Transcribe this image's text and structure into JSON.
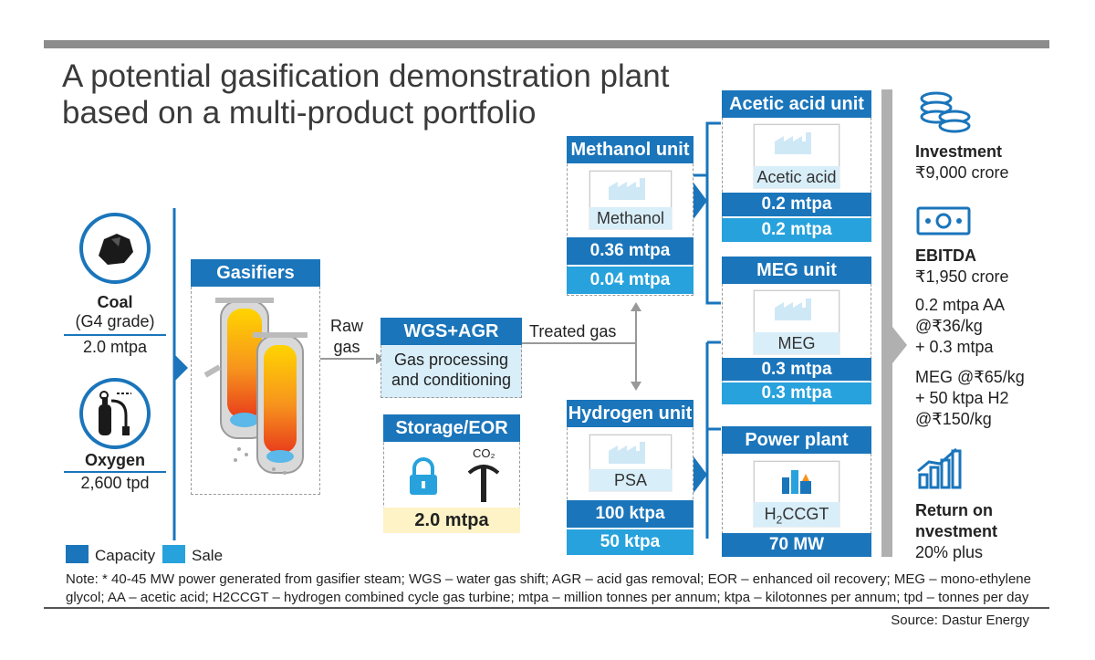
{
  "title_line1": "A potential gasification demonstration plant",
  "title_line2": "based on a multi-product portfolio",
  "inputs": {
    "coal_label": "Coal",
    "coal_grade": "(G4 grade)",
    "coal_value": "2.0 mtpa",
    "oxygen_label": "Oxygen",
    "oxygen_value": "2,600 tpd"
  },
  "gasifiers": {
    "title": "Gasifiers"
  },
  "raw_gas": {
    "line1": "Raw",
    "line2": "gas"
  },
  "wgs": {
    "title": "WGS+AGR",
    "line1": "Gas processing",
    "line2": "and conditioning"
  },
  "treated_gas": "Treated gas",
  "storage": {
    "title": "Storage/EOR",
    "co2": "CO₂",
    "value": "2.0 mtpa"
  },
  "methanol": {
    "title": "Methanol unit",
    "product": "Methanol",
    "capacity": "0.36 mtpa",
    "sale": "0.04 mtpa"
  },
  "hydrogen": {
    "title": "Hydrogen unit",
    "product": "PSA",
    "capacity": "100 ktpa",
    "sale": "50 ktpa"
  },
  "acetic": {
    "title": "Acetic acid unit",
    "product": "Acetic acid",
    "capacity": "0.2 mtpa",
    "sale": "0.2 mtpa"
  },
  "meg": {
    "title": "MEG unit",
    "product": "MEG",
    "capacity": "0.3 mtpa",
    "sale": "0.3 mtpa"
  },
  "power": {
    "title": "Power plant",
    "product_h": "H",
    "product_sub": "2",
    "product_rest": "CCGT",
    "capacity": "70 MW"
  },
  "finance": {
    "investment_label": "Investment",
    "investment_value": "₹9,000 crore",
    "ebitda_label": "EBITDA",
    "ebitda_value": "₹1,950 crore",
    "ebitda_d1": "0.2 mtpa AA",
    "ebitda_d2": "@₹36/kg",
    "ebitda_d3": "+ 0.3 mtpa",
    "ebitda_d4": "MEG @₹65/kg",
    "ebitda_d5": "+ 50 ktpa H2",
    "ebitda_d6": "@₹150/kg",
    "roi_line1": "Return on",
    "roi_line2": "nvestment",
    "roi_value": "20% plus"
  },
  "legend": {
    "capacity": "Capacity",
    "sale": "Sale"
  },
  "note_line1": "Note: * 40-45 MW power generated from gasifier steam; WGS – water gas shift; AGR – acid gas removal; EOR – enhanced oil recovery; MEG – mono-ethylene",
  "note_line2": "glycol; AA – acetic acid; H2CCGT – hydrogen combined cycle gas turbine; mtpa – million tonnes per annum; ktpa – kilotonnes per annum; tpd – tonnes per day",
  "source": "Source: Dastur Energy",
  "colors": {
    "capacity": "#1a75bb",
    "sale": "#27a2dc",
    "accent_line": "#8c8c8c"
  }
}
